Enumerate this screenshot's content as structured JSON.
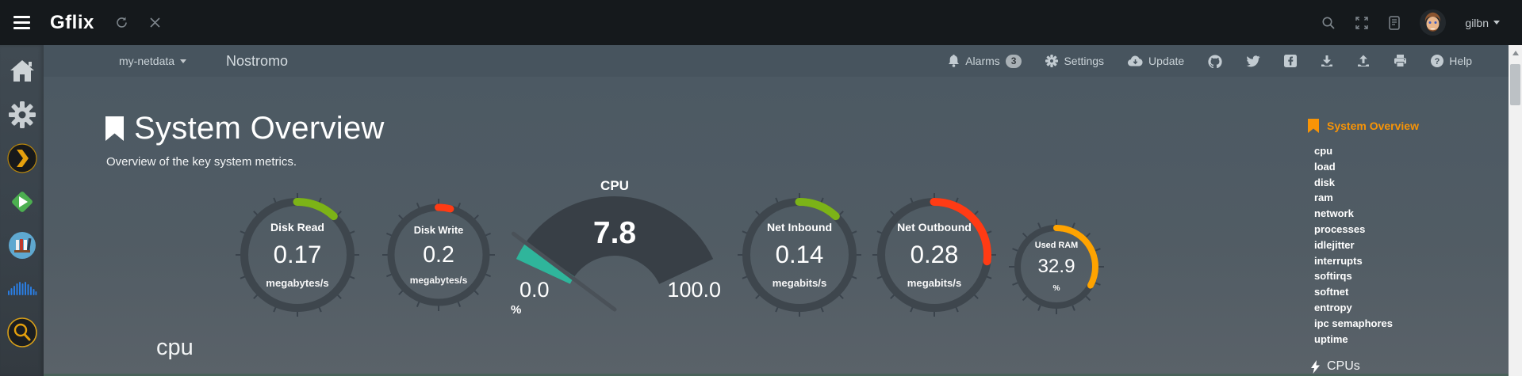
{
  "topbar": {
    "brand": "Gflix",
    "username": "gilbn",
    "icon_names": [
      "hamburger-menu-icon",
      "refresh-icon",
      "close-icon",
      "search-icon",
      "fullscreen-icon",
      "changelog-icon",
      "user-avatar",
      "caret-down-icon"
    ]
  },
  "navbar": {
    "server_dropdown": "my-netdata",
    "hostname": "Nostromo",
    "alarms_label": "Alarms",
    "alarms_badge": "3",
    "settings_label": "Settings",
    "update_label": "Update",
    "help_label": "Help",
    "icon_names": [
      "bell-icon",
      "gear-icon",
      "cloud-update-icon",
      "github-icon",
      "twitter-icon",
      "facebook-icon",
      "import-icon",
      "export-icon",
      "print-icon",
      "help-icon"
    ]
  },
  "sidebar": {
    "icon_names": [
      "home-icon",
      "settings-gear-icon",
      "plex-icon",
      "emby-icon",
      "library-icon",
      "soundwave-icon",
      "search-icon"
    ]
  },
  "main": {
    "title": "System Overview",
    "subtitle": "Overview of the key system metrics.",
    "section_heading": "cpu"
  },
  "toc": {
    "active_section": "System Overview",
    "items": [
      "cpu",
      "load",
      "disk",
      "ram",
      "network",
      "processes",
      "idlejitter",
      "interrupts",
      "softirqs",
      "softnet",
      "entropy",
      "ipc semaphores",
      "uptime"
    ],
    "next_section": "CPUs"
  },
  "colors": {
    "accent_orange": "#F89406",
    "gauge_green": "#7CB317",
    "gauge_red": "#FF3B14",
    "gauge_orange": "#FFA300",
    "gauge_teal": "#2FB59B",
    "gauge_ring": "#3E464D"
  },
  "chart_data": [
    {
      "type": "gauge",
      "variant": "ring",
      "title": "Disk Read",
      "value": "0.17",
      "units": "megabytes/s",
      "percent": 12,
      "color": "#7CB317"
    },
    {
      "type": "gauge",
      "variant": "ring",
      "title": "Disk Write",
      "value": "0.2",
      "units": "megabytes/s",
      "percent": 4,
      "color": "#FF3B14"
    },
    {
      "type": "gauge",
      "variant": "needle",
      "title": "CPU",
      "value": "7.8",
      "units": "%",
      "min": "0.0",
      "max": "100.0",
      "value_num": 7.8,
      "range": [
        0,
        100
      ],
      "color": "#2FB59B"
    },
    {
      "type": "gauge",
      "variant": "ring",
      "title": "Net Inbound",
      "value": "0.14",
      "units": "megabits/s",
      "percent": 12,
      "color": "#7CB317"
    },
    {
      "type": "gauge",
      "variant": "ring",
      "title": "Net Outbound",
      "value": "0.28",
      "units": "megabits/s",
      "percent": 27,
      "color": "#FF3B14"
    },
    {
      "type": "gauge",
      "variant": "ring",
      "title": "Used RAM",
      "value": "32.9",
      "units": "%",
      "percent": 33,
      "color": "#FFA300"
    }
  ]
}
